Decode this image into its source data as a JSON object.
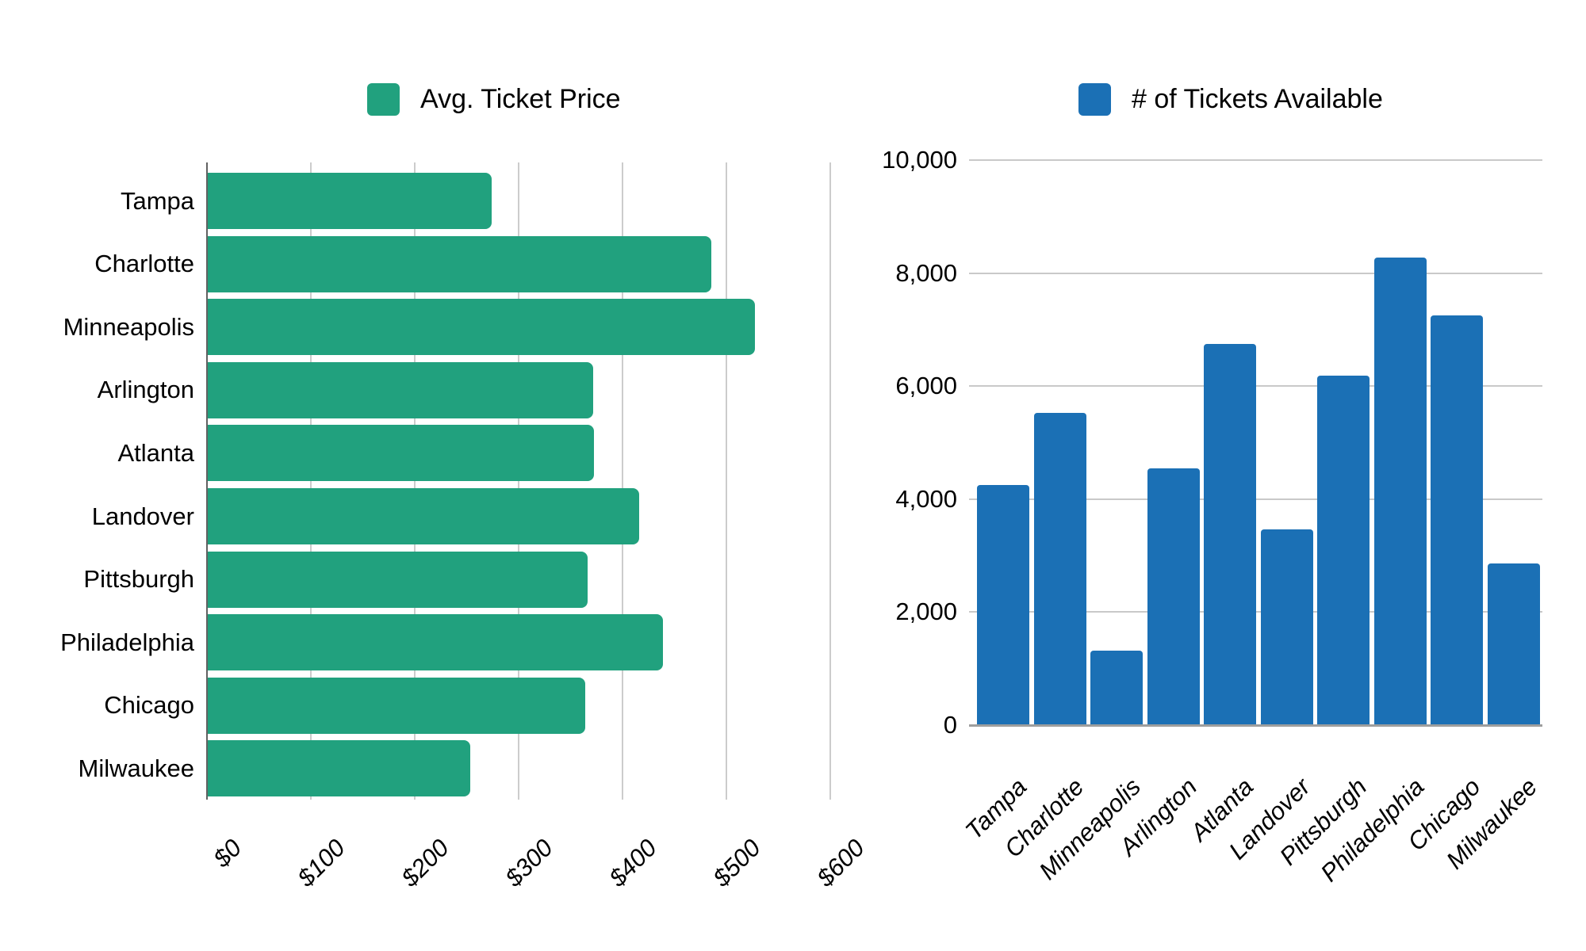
{
  "page": {
    "background": "#ffffff",
    "text_color": "#000000"
  },
  "chart_data": [
    {
      "type": "bar",
      "orientation": "horizontal",
      "legend": "Avg. Ticket Price",
      "color": "#21A17E",
      "categories": [
        "Tampa",
        "Charlotte",
        "Minneapolis",
        "Arlington",
        "Atlanta",
        "Landover",
        "Pittsburgh",
        "Philadelphia",
        "Chicago",
        "Milwaukee"
      ],
      "values": [
        273,
        485,
        527,
        371,
        372,
        415,
        366,
        438,
        363,
        253
      ],
      "xlim": [
        0,
        600
      ],
      "x_tick_labels": [
        "$0",
        "$100",
        "$200",
        "$300",
        "$400",
        "$500",
        "$600"
      ],
      "x_tick_values": [
        0,
        100,
        200,
        300,
        400,
        500,
        600
      ],
      "grid": true,
      "legend_position": "top"
    },
    {
      "type": "bar",
      "orientation": "vertical",
      "legend": "# of Tickets Available",
      "color": "#1B70B5",
      "categories": [
        "Tampa",
        "Charlotte",
        "Minneapolis",
        "Arlington",
        "Atlanta",
        "Landover",
        "Pittsburgh",
        "Philadelphia",
        "Chicago",
        "Milwaukee"
      ],
      "values": [
        4250,
        5520,
        1320,
        4540,
        6740,
        3460,
        6190,
        8280,
        7250,
        2860
      ],
      "ylim": [
        0,
        10000
      ],
      "y_tick_labels": [
        "0",
        "2,000",
        "4,000",
        "6,000",
        "8,000",
        "10,000"
      ],
      "y_tick_values": [
        0,
        2000,
        4000,
        6000,
        8000,
        10000
      ],
      "grid": true,
      "legend_position": "top"
    }
  ]
}
